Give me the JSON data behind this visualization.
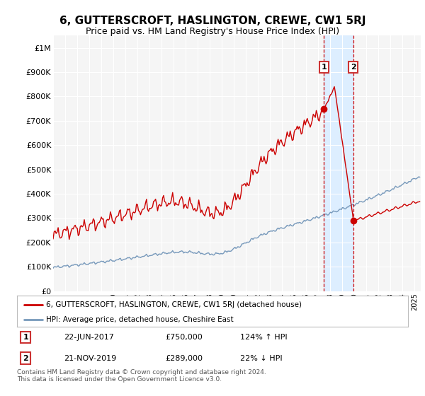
{
  "title": "6, GUTTERSCROFT, HASLINGTON, CREWE, CW1 5RJ",
  "subtitle": "Price paid vs. HM Land Registry's House Price Index (HPI)",
  "title_fontsize": 11,
  "subtitle_fontsize": 9,
  "ylabel_ticks": [
    "£0",
    "£100K",
    "£200K",
    "£300K",
    "£400K",
    "£500K",
    "£600K",
    "£700K",
    "£800K",
    "£900K",
    "£1M"
  ],
  "ytick_values": [
    0,
    100000,
    200000,
    300000,
    400000,
    500000,
    600000,
    700000,
    800000,
    900000,
    1000000
  ],
  "ylim": [
    0,
    1050000
  ],
  "xlim_start": 1995.0,
  "xlim_end": 2025.5,
  "background_color": "#ffffff",
  "plot_bg_color": "#f5f5f5",
  "grid_color": "#ffffff",
  "sale1_x": 2017.47,
  "sale1_y": 750000,
  "sale2_x": 2019.89,
  "sale2_y": 289000,
  "legend1_label": "6, GUTTERSCROFT, HASLINGTON, CREWE, CW1 5RJ (detached house)",
  "legend2_label": "HPI: Average price, detached house, Cheshire East",
  "legend1_color": "#cc0000",
  "legend2_color": "#7799bb",
  "footer": "Contains HM Land Registry data © Crown copyright and database right 2024.\nThis data is licensed under the Open Government Licence v3.0.",
  "highlight_color": "#ddeeff",
  "dashed_line_color": "#cc0000",
  "table_row1": [
    "1",
    "22-JUN-2017",
    "£750,000",
    "124% ↑ HPI"
  ],
  "table_row2": [
    "2",
    "21-NOV-2019",
    "£289,000",
    "22% ↓ HPI"
  ]
}
